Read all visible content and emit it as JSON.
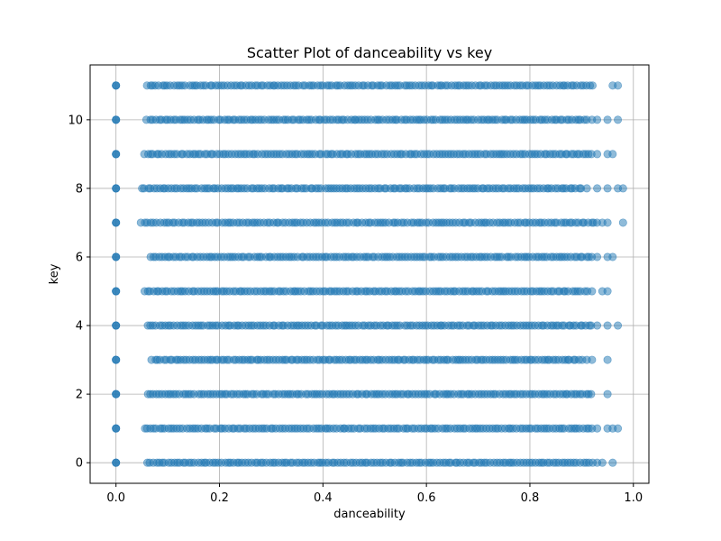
{
  "chart_data": {
    "type": "scatter",
    "title": "Scatter Plot of danceability vs key",
    "xlabel": "danceability",
    "ylabel": "key",
    "xlim": [
      -0.05,
      1.03
    ],
    "ylim": [
      -0.6,
      11.6
    ],
    "xticks": [
      0.0,
      0.2,
      0.4,
      0.6,
      0.8,
      1.0
    ],
    "xtick_labels": [
      "0.0",
      "0.2",
      "0.4",
      "0.6",
      "0.8",
      "1.0"
    ],
    "yticks": [
      0,
      2,
      4,
      6,
      8,
      10
    ],
    "ytick_labels": [
      "0",
      "2",
      "4",
      "6",
      "8",
      "10"
    ],
    "grid": true,
    "point_color": "#1f77b4",
    "point_alpha": 0.5,
    "rows": [
      {
        "key": 0,
        "dense_range": [
          0.06,
          0.92
        ],
        "zero_point": true,
        "extra_x": [
          0.93,
          0.94,
          0.96
        ]
      },
      {
        "key": 1,
        "dense_range": [
          0.055,
          0.92
        ],
        "zero_point": true,
        "extra_x": [
          0.93,
          0.95,
          0.96,
          0.97
        ]
      },
      {
        "key": 2,
        "dense_range": [
          0.06,
          0.92
        ],
        "zero_point": true,
        "extra_x": [
          0.95
        ]
      },
      {
        "key": 3,
        "dense_range": [
          0.07,
          0.9
        ],
        "zero_point": true,
        "extra_x": [
          0.91,
          0.92,
          0.95
        ]
      },
      {
        "key": 4,
        "dense_range": [
          0.06,
          0.92
        ],
        "zero_point": true,
        "extra_x": [
          0.93,
          0.95,
          0.97
        ]
      },
      {
        "key": 5,
        "dense_range": [
          0.055,
          0.91
        ],
        "zero_point": true,
        "extra_x": [
          0.92,
          0.94,
          0.95
        ]
      },
      {
        "key": 6,
        "dense_range": [
          0.065,
          0.92
        ],
        "zero_point": true,
        "extra_x": [
          0.93,
          0.95,
          0.96
        ]
      },
      {
        "key": 7,
        "dense_range": [
          0.05,
          0.93
        ],
        "zero_point": true,
        "extra_x": [
          0.94,
          0.95,
          0.98
        ]
      },
      {
        "key": 8,
        "dense_range": [
          0.05,
          0.9
        ],
        "zero_point": true,
        "extra_x": [
          0.91,
          0.93,
          0.95,
          0.97,
          0.98
        ]
      },
      {
        "key": 9,
        "dense_range": [
          0.055,
          0.92
        ],
        "zero_point": true,
        "extra_x": [
          0.93,
          0.95,
          0.96
        ]
      },
      {
        "key": 10,
        "dense_range": [
          0.06,
          0.91
        ],
        "zero_point": true,
        "extra_x": [
          0.92,
          0.93,
          0.95,
          0.97
        ]
      },
      {
        "key": 11,
        "dense_range": [
          0.06,
          0.92
        ],
        "zero_point": true,
        "extra_x": [
          0.96,
          0.97
        ]
      }
    ]
  }
}
